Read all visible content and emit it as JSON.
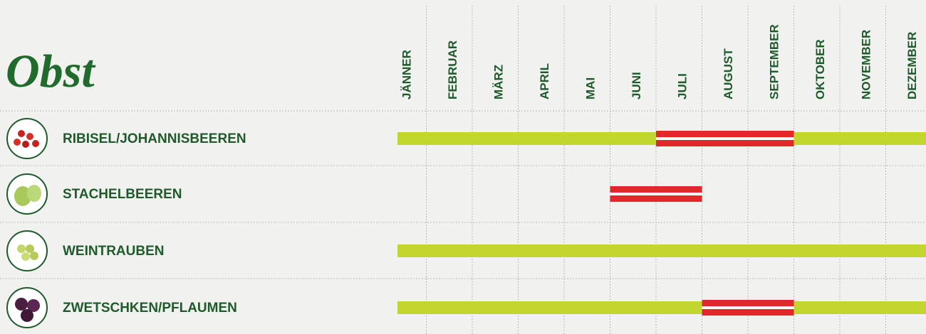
{
  "title": "Obst",
  "months": [
    "JÄNNER",
    "FEBRUAR",
    "MÄRZ",
    "APRIL",
    "MAI",
    "JUNI",
    "JULI",
    "AUGUST",
    "SEPTEMBER",
    "OKTOBER",
    "NOVEMBER",
    "DEZEMBER"
  ],
  "season_color": "#c3d62f",
  "main_season_color": "#e4262b",
  "rows": [
    {
      "name": "RIBISEL/JOHANNISBEEREN",
      "season": [
        1,
        12
      ],
      "main_season": [
        7,
        9
      ]
    },
    {
      "name": "STACHELBEEREN",
      "season": null,
      "main_season": [
        6,
        7
      ]
    },
    {
      "name": "WEINTRAUBEN",
      "season": [
        1,
        12
      ],
      "main_season": null
    },
    {
      "name": "ZWETSCHKEN/PFLAUMEN",
      "season": [
        1,
        12
      ],
      "main_season": [
        8,
        9
      ]
    }
  ]
}
